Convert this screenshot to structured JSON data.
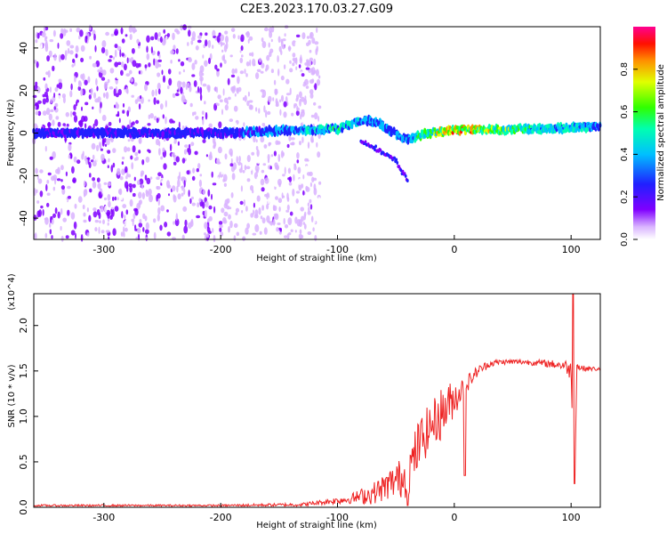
{
  "figure_title": "C2E3.2023.170.03.27.G09",
  "colors": {
    "signal_track": "#2020ff",
    "snr_line": "#ee2222",
    "scatter_purple": "#8000ff"
  },
  "chart_data": [
    {
      "type": "heatmap",
      "title": "C2E3.2023.170.03.27.G09",
      "xlabel": "Height of straight line (km)",
      "ylabel": "Frequency (Hz)",
      "xlim": [
        -360,
        125
      ],
      "ylim": [
        -50,
        50
      ],
      "xticks": [
        -300,
        -200,
        -100,
        0,
        100
      ],
      "yticks": [
        -40,
        -20,
        0,
        20,
        40
      ],
      "grid": false,
      "colorbar": {
        "label": "Normalized spectral amplitude",
        "range": [
          0.0,
          1.0
        ],
        "ticks": [
          "0.0",
          "0.2",
          "0.4",
          "0.6",
          "0.8"
        ]
      },
      "dominant_track": {
        "x": [
          -360,
          -300,
          -250,
          -200,
          -150,
          -120,
          -100,
          -85,
          -75,
          -65,
          -55,
          -45,
          -38,
          -30,
          -20,
          -10,
          0,
          20,
          40,
          60,
          80,
          100,
          125
        ],
        "y": [
          0,
          0,
          0,
          0,
          1,
          1.5,
          2,
          5,
          6,
          5,
          1,
          -2,
          -3,
          -1,
          0,
          1,
          1.5,
          1.5,
          1.5,
          2,
          2,
          2.5,
          3
        ],
        "amplitude": [
          0.35,
          0.35,
          0.35,
          0.35,
          0.45,
          0.5,
          0.6,
          0.5,
          0.5,
          0.45,
          0.4,
          0.45,
          0.5,
          0.6,
          0.7,
          0.85,
          0.9,
          0.85,
          0.75,
          0.6,
          0.55,
          0.55,
          0.5
        ]
      },
      "secondary_branch": {
        "x": [
          -80,
          -70,
          -60,
          -50,
          -45,
          -40
        ],
        "y": [
          -4,
          -6,
          -10,
          -13,
          -18,
          -22
        ]
      },
      "noise_region_x": [
        -360,
        -115
      ]
    },
    {
      "type": "line",
      "xlabel": "Height of straight line (km)",
      "ylabel": "SNR (10 * v/v)",
      "y_multiplier": "(x10^4)",
      "xlim": [
        -360,
        125
      ],
      "ylim": [
        0,
        2.35
      ],
      "xticks": [
        -300,
        -200,
        -100,
        0,
        100
      ],
      "yticks": [
        "0.0",
        "0.5",
        "1.0",
        "1.5",
        "2.0"
      ],
      "grid": false,
      "series": [
        {
          "envelope_x": [
            -360,
            -200,
            -130,
            -110,
            -90,
            -70,
            -60,
            -50,
            -40,
            -30,
            -20,
            -10,
            0,
            10,
            20,
            30,
            40,
            60,
            80,
            95,
            100,
            103,
            105,
            110,
            125
          ],
          "envelope_y": [
            0.02,
            0.02,
            0.03,
            0.06,
            0.09,
            0.15,
            0.22,
            0.3,
            0.35,
            0.7,
            0.9,
            1.05,
            1.2,
            1.35,
            1.5,
            1.58,
            1.6,
            1.6,
            1.58,
            1.56,
            1.5,
            0.26,
            1.55,
            1.53,
            1.52
          ],
          "noise_amplitude": [
            0.01,
            0.01,
            0.02,
            0.03,
            0.05,
            0.12,
            0.15,
            0.2,
            0.25,
            0.3,
            0.25,
            0.3,
            0.2,
            0.1,
            0.06,
            0.04,
            0.03,
            0.03,
            0.04,
            0.06,
            0.12,
            0.0,
            0.06,
            0.03,
            0.02
          ],
          "peak": {
            "x": 102,
            "y": 2.35
          },
          "dips": [
            {
              "x": -40,
              "y": 0.02
            },
            {
              "x": 9,
              "y": 0.35
            },
            {
              "x": 103,
              "y": 0.26
            }
          ]
        }
      ]
    }
  ]
}
